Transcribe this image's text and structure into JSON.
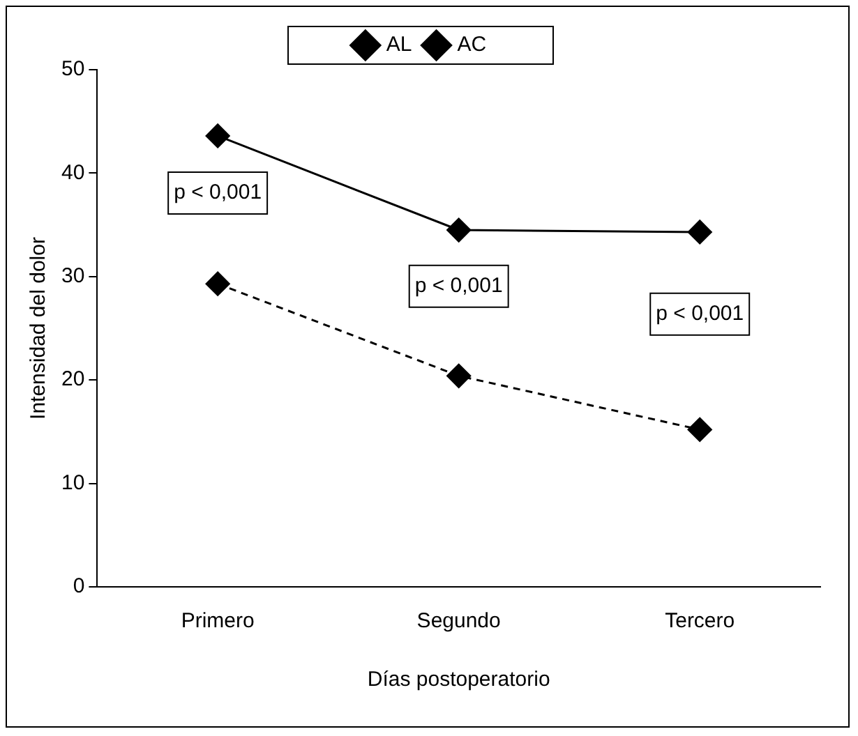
{
  "chart_data": {
    "type": "line",
    "xlabel": "Días postoperatorio",
    "ylabel": "Intensidad del dolor",
    "categories": [
      "Primero",
      "Segundo",
      "Tercero"
    ],
    "series": [
      {
        "name": "AL",
        "color": "#000000",
        "values": [
          29.3,
          20.4,
          15.2
        ],
        "line_style": "dashed"
      },
      {
        "name": "AC",
        "color": "#000000",
        "values": [
          43.6,
          34.5,
          34.3
        ],
        "line_style": "solid"
      }
    ],
    "ylim": [
      0,
      50
    ],
    "yticks": [
      0,
      10,
      20,
      30,
      40,
      50
    ],
    "grid": false,
    "legend": "top",
    "marker": "diamond",
    "annotations": [
      "p < 0,001",
      "p < 0,001",
      "p < 0,001"
    ]
  }
}
